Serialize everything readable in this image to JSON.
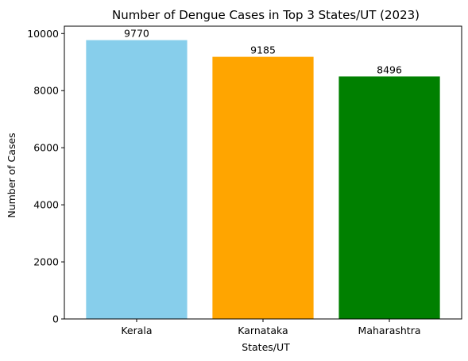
{
  "chart_data": {
    "type": "bar",
    "title": "Number of Dengue Cases in Top 3 States/UT (2023)",
    "xlabel": "States/UT",
    "ylabel": "Number of Cases",
    "categories": [
      "Kerala",
      "Karnataka",
      "Maharashtra"
    ],
    "values": [
      9770,
      9185,
      8496
    ],
    "value_labels": [
      "9770",
      "9185",
      "8496"
    ],
    "colors": [
      "#87ceeb",
      "#ffa500",
      "#008000"
    ],
    "ylim": [
      0,
      10258.5
    ],
    "yticks": [
      0,
      2000,
      4000,
      6000,
      8000,
      10000
    ],
    "ytick_labels": [
      "0",
      "2000",
      "4000",
      "6000",
      "8000",
      "10000"
    ],
    "grid": false,
    "legend": "none"
  }
}
